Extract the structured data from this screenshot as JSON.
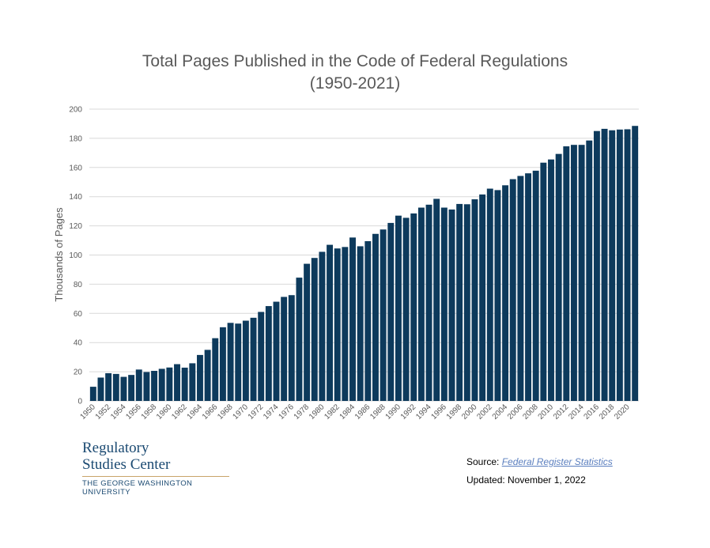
{
  "chart_data": {
    "type": "bar",
    "title_line1": "Total Pages Published in the Code of Federal Regulations",
    "title_line2": "(1950-2021)",
    "ylabel": "Thousands of Pages",
    "xlabel": "",
    "ylim": [
      0,
      200
    ],
    "yticks": [
      0,
      20,
      40,
      60,
      80,
      100,
      120,
      140,
      160,
      180,
      200
    ],
    "grid": true,
    "bar_color": "#0d3a5c",
    "categories": [
      "1950",
      "1951",
      "1952",
      "1953",
      "1954",
      "1955",
      "1956",
      "1957",
      "1958",
      "1959",
      "1960",
      "1961",
      "1962",
      "1963",
      "1964",
      "1965",
      "1966",
      "1967",
      "1968",
      "1969",
      "1970",
      "1971",
      "1972",
      "1973",
      "1974",
      "1975",
      "1976",
      "1977",
      "1978",
      "1979",
      "1980",
      "1981",
      "1982",
      "1983",
      "1984",
      "1985",
      "1986",
      "1987",
      "1988",
      "1989",
      "1990",
      "1991",
      "1992",
      "1993",
      "1994",
      "1995",
      "1996",
      "1997",
      "1998",
      "1999",
      "2000",
      "2001",
      "2002",
      "2003",
      "2004",
      "2005",
      "2006",
      "2007",
      "2008",
      "2009",
      "2010",
      "2011",
      "2012",
      "2013",
      "2014",
      "2015",
      "2016",
      "2017",
      "2018",
      "2019",
      "2020",
      "2021"
    ],
    "xtick_labels": [
      "1950",
      "1952",
      "1954",
      "1956",
      "1958",
      "1960",
      "1962",
      "1964",
      "1966",
      "1968",
      "1970",
      "1972",
      "1974",
      "1976",
      "1978",
      "1980",
      "1982",
      "1984",
      "1986",
      "1988",
      "1990",
      "1992",
      "1994",
      "1996",
      "1998",
      "2000",
      "2002",
      "2004",
      "2006",
      "2008",
      "2010",
      "2012",
      "2014",
      "2016",
      "2018",
      "2020"
    ],
    "values": [
      9.7,
      16,
      19,
      18.5,
      16.5,
      17.8,
      21.5,
      19.8,
      20.6,
      22,
      22.9,
      25.2,
      22.8,
      25.8,
      31.5,
      35,
      43,
      50.5,
      53.5,
      53,
      55,
      57,
      61,
      65,
      68,
      71.3,
      72.5,
      84.5,
      94,
      98,
      102.2,
      107,
      104.5,
      105.5,
      112,
      106,
      109.5,
      114.5,
      117.5,
      122,
      127,
      125.5,
      128.5,
      132.5,
      134.5,
      138.5,
      132.5,
      131.2,
      135,
      134.8,
      138.2,
      141.5,
      145.5,
      144.5,
      147.8,
      152,
      154.2,
      156,
      157.8,
      163.3,
      165.5,
      169.3,
      174.5,
      175.5,
      175.5,
      178.5,
      185,
      186.5,
      185.5,
      186,
      186.2,
      188.5
    ]
  },
  "logo": {
    "line1": "Regulatory",
    "line2": "Studies Center",
    "line3": "THE GEORGE WASHINGTON UNIVERSITY"
  },
  "source": {
    "label": "Source: ",
    "link_text": "Federal Register Statistics",
    "updated": "Updated: November 1, 2022"
  }
}
